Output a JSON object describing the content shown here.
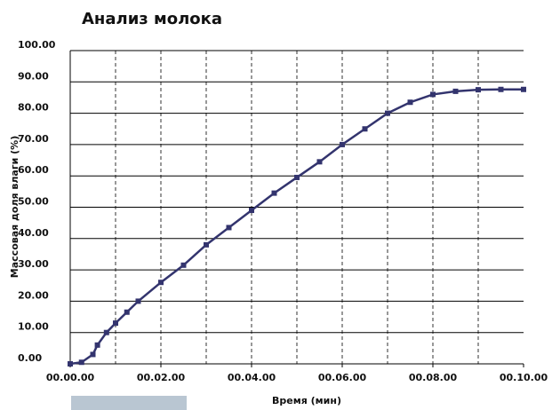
{
  "chart_data": {
    "type": "line",
    "title": "Анализ молока",
    "xlabel": "Время (мин)",
    "ylabel": "Массовая доля влаги (%)",
    "x": [
      0,
      0.25,
      0.5,
      0.6,
      0.8,
      1.0,
      1.25,
      1.5,
      2.0,
      2.5,
      3.0,
      3.5,
      4.0,
      4.5,
      5.0,
      5.5,
      6.0,
      6.5,
      7.0,
      7.5,
      8.0,
      8.5,
      9.0,
      9.5,
      10.0
    ],
    "series": [
      {
        "color": "#33346e",
        "values": [
          0,
          0.5,
          3,
          6,
          10,
          13,
          16.5,
          20,
          26,
          31.5,
          38,
          43.5,
          49,
          54.5,
          59.5,
          64.5,
          70,
          75,
          80,
          83.5,
          86,
          87,
          87.5,
          87.6,
          87.6
        ]
      }
    ],
    "xlim": [
      0,
      10
    ],
    "ylim": [
      0,
      100
    ],
    "xticks": [
      {
        "value": 0,
        "label": "00.00.00"
      },
      {
        "value": 2,
        "label": "00.02.00"
      },
      {
        "value": 4,
        "label": "00.04.00"
      },
      {
        "value": 6,
        "label": "00.06.00"
      },
      {
        "value": 8,
        "label": "00.08.00"
      },
      {
        "value": 10,
        "label": "00.10.00"
      }
    ],
    "xgrid": [
      1,
      2,
      3,
      4,
      5,
      6,
      7,
      8,
      9
    ],
    "yticks": [
      {
        "value": 0,
        "label": "0.00"
      },
      {
        "value": 10,
        "label": "10.00"
      },
      {
        "value": 20,
        "label": "20.00"
      },
      {
        "value": 30,
        "label": "30.00"
      },
      {
        "value": 40,
        "label": "40.00"
      },
      {
        "value": 50,
        "label": "50.00"
      },
      {
        "value": 60,
        "label": "60.00"
      },
      {
        "value": 70,
        "label": "70.00"
      },
      {
        "value": 80,
        "label": "80.00"
      },
      {
        "value": 90,
        "label": "90.00"
      },
      {
        "value": 100,
        "label": "100.00"
      }
    ],
    "grid": true
  }
}
